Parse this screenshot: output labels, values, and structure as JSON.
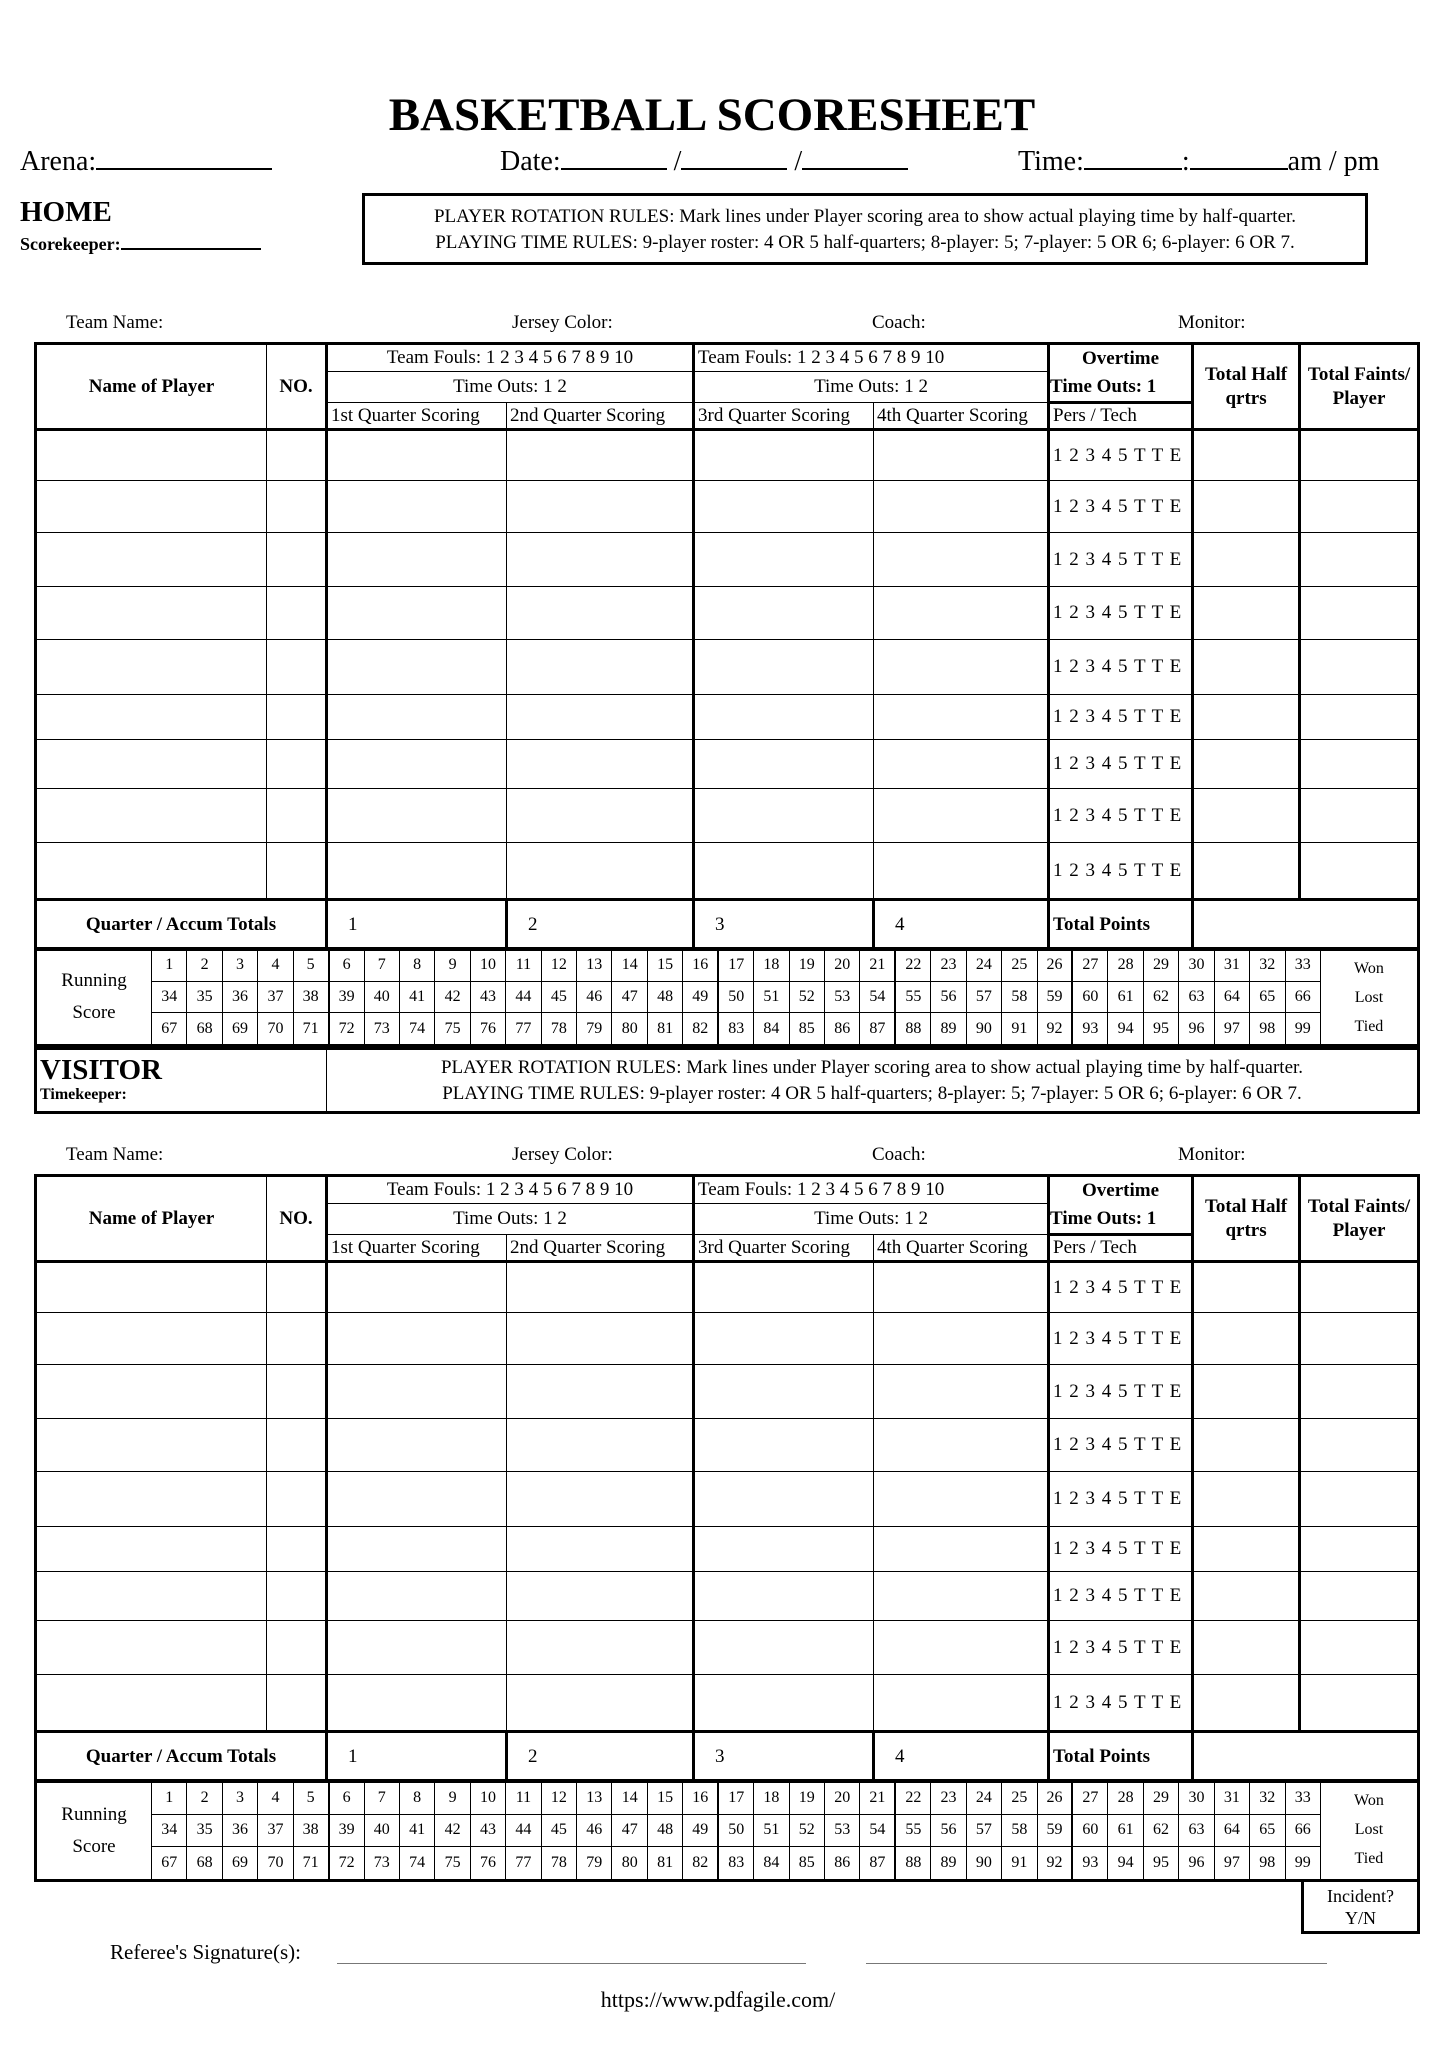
{
  "title": "BASKETBALL SCORESHEET",
  "header": {
    "arena_label": "Arena:",
    "arena_value": "",
    "date_label": "Date:",
    "time_label": "Time:",
    "ampm": "am / pm",
    "home_label": "HOME",
    "scorekeeper_label": "Scorekeeper:"
  },
  "rules": {
    "rotation": "PLAYER ROTATION RULES: Mark lines under Player scoring area to show actual playing time by half-quarter.",
    "playing_time": "PLAYING TIME RULES: 9-player roster:  4 OR 5 half-quarters;  8-player: 5;  7-player: 5 OR 6;  6-player: 6 OR 7."
  },
  "team_info": {
    "team_name": "Team Name:",
    "jersey_color": "Jersey Color:",
    "coach": "Coach:",
    "monitor": "Monitor:"
  },
  "table_header": {
    "name_of_player": "Name of Player",
    "no": "NO.",
    "team_fouls": "Team Fouls: 1 2 3 4 5 6 7 8 9 10",
    "time_outs": "Time Outs: 1 2",
    "q1": "1st Quarter Scoring",
    "q2": "2nd Quarter Scoring",
    "q3": "3rd Quarter Scoring",
    "q4": "4th Quarter Scoring",
    "overtime": "Overtime",
    "ot_time_outs": "Time Outs: 1",
    "pers_tech": "Pers / Tech",
    "total_half": "Total Half qrtrs",
    "total_faints": "Total Faints/ Player"
  },
  "foul_marks": "1 2 3 4 5 T T E",
  "player_rows": 9,
  "totals": {
    "label": "Quarter / Accum Totals",
    "quarters": [
      "1",
      "2",
      "3",
      "4"
    ],
    "total_points": "Total Points"
  },
  "running_score": {
    "label_line1": "Running",
    "label_line2": "Score",
    "result": [
      "Won",
      "Lost",
      "Tied"
    ]
  },
  "visitor": {
    "label": "VISITOR",
    "timekeeper_label": "Timekeeper:"
  },
  "footer": {
    "incident": "Incident?",
    "incident_yn": "Y/N",
    "referee_signature": "Referee's Signature(s):",
    "url": "https://www.pdfagile.com/"
  }
}
